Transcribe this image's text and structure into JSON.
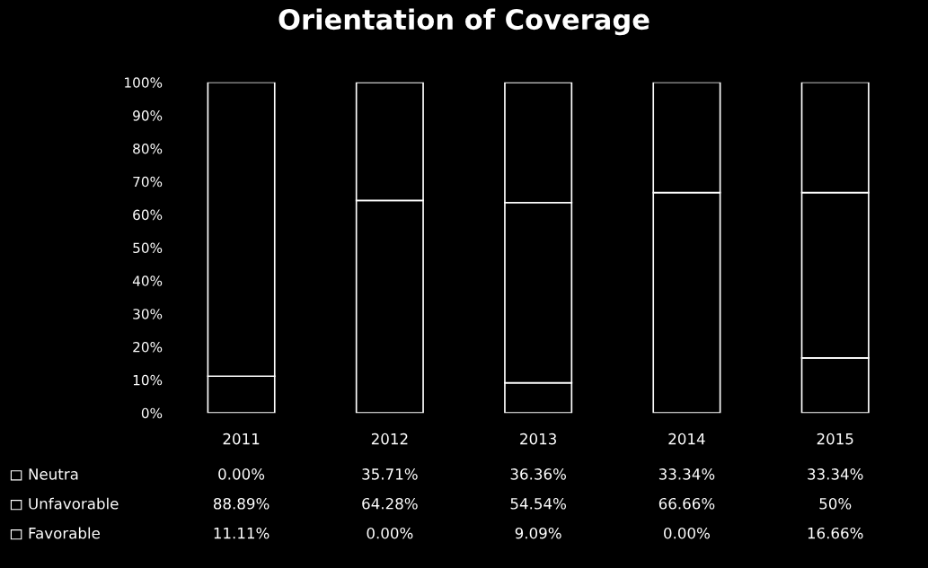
{
  "chart_data": {
    "type": "bar",
    "title": "Orientation of Coverage",
    "stacked": true,
    "categories": [
      "2011",
      "2012",
      "2013",
      "2014",
      "2015"
    ],
    "series": [
      {
        "name": "Favorable",
        "color": "#000000",
        "values": [
          11.11,
          0.0,
          9.09,
          0.0,
          16.66
        ],
        "value_labels": [
          "11.11%",
          "0.00%",
          "9.09%",
          "0.00%",
          "16.66%"
        ]
      },
      {
        "name": "Unfavorable",
        "color": "#000000",
        "values": [
          88.89,
          64.28,
          54.54,
          66.66,
          50
        ],
        "value_labels": [
          "88.89%",
          "64.28%",
          "54.54%",
          "66.66%",
          "50%"
        ]
      },
      {
        "name": "Neutra",
        "color": "#000000",
        "values": [
          0.0,
          35.71,
          36.36,
          33.34,
          33.34
        ],
        "value_labels": [
          "0.00%",
          "35.71%",
          "36.36%",
          "33.34%",
          "33.34%"
        ]
      }
    ],
    "ylim": [
      0,
      100
    ],
    "yticks": [
      {
        "value": 0,
        "label": "0%"
      },
      {
        "value": 10,
        "label": "10%"
      },
      {
        "value": 20,
        "label": "20%"
      },
      {
        "value": 30,
        "label": "30%"
      },
      {
        "value": 40,
        "label": "40%"
      },
      {
        "value": 50,
        "label": "50%"
      },
      {
        "value": 60,
        "label": "60%"
      },
      {
        "value": 70,
        "label": "70%"
      },
      {
        "value": 80,
        "label": "80%"
      },
      {
        "value": 90,
        "label": "90%"
      },
      {
        "value": 100,
        "label": "100%"
      }
    ],
    "grid": false,
    "legend": "bottom left"
  }
}
